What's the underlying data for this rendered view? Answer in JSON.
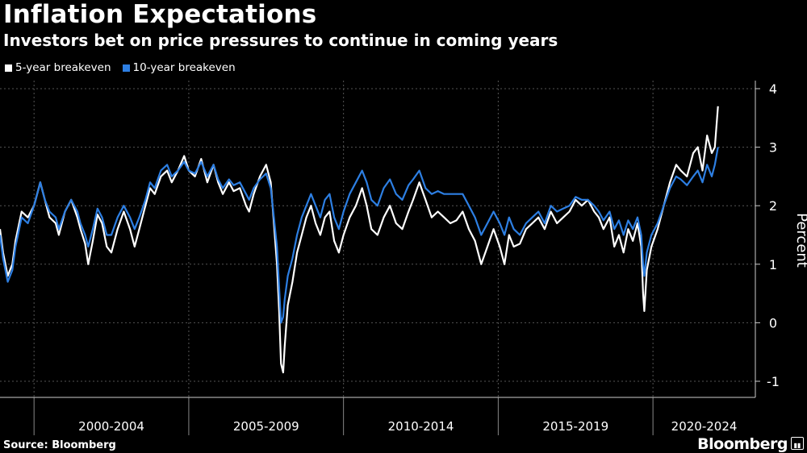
{
  "header": {
    "title": "Inflation Expectations",
    "subtitle": "Investors bet on price pressures to continue in coming years"
  },
  "footer": {
    "source": "Source: Bloomberg",
    "brand": "Bloomberg",
    "brand_mark_icon": "bloomberg-chart-icon"
  },
  "colors": {
    "background": "#000000",
    "series_5y": "#ffffff",
    "series_10y": "#2d7fe3",
    "grid": "#555555"
  },
  "chart_data": {
    "type": "line",
    "title": "Inflation Expectations",
    "subtitle": "Investors bet on price pressures to continue in coming years",
    "ylabel": "Percent",
    "xlabel": "",
    "ylim": [
      -1.3,
      4.2
    ],
    "yticks": [
      -1,
      0,
      1,
      2,
      3,
      4
    ],
    "ytick_labels": [
      "-1",
      "0",
      "1",
      "2",
      "3",
      "4"
    ],
    "xlim": [
      1998.0,
      2022.2
    ],
    "x_categories": [
      "2000-2004",
      "2005-2009",
      "2010-2014",
      "2015-2019",
      "2020-2024"
    ],
    "x_group_bounds": [
      1999,
      2004,
      2009,
      2014,
      2019,
      2024
    ],
    "grid": true,
    "legend_position": "top-left",
    "series": [
      {
        "name": "5-year breakeven",
        "color": "#ffffff",
        "points": [
          [
            1998.0,
            1.6
          ],
          [
            1998.1,
            1.2
          ],
          [
            1998.25,
            0.8
          ],
          [
            1998.4,
            1.0
          ],
          [
            1998.5,
            1.4
          ],
          [
            1998.7,
            1.9
          ],
          [
            1998.9,
            1.8
          ],
          [
            1999.1,
            2.0
          ],
          [
            1999.3,
            2.4
          ],
          [
            1999.45,
            2.1
          ],
          [
            1999.6,
            1.8
          ],
          [
            1999.8,
            1.7
          ],
          [
            1999.9,
            1.5
          ],
          [
            2000.1,
            1.9
          ],
          [
            2000.3,
            2.1
          ],
          [
            2000.5,
            1.8
          ],
          [
            2000.6,
            1.6
          ],
          [
            2000.75,
            1.35
          ],
          [
            2000.85,
            1.0
          ],
          [
            2001.0,
            1.4
          ],
          [
            2001.15,
            1.85
          ],
          [
            2001.3,
            1.7
          ],
          [
            2001.45,
            1.3
          ],
          [
            2001.6,
            1.2
          ],
          [
            2001.8,
            1.6
          ],
          [
            2002.0,
            1.9
          ],
          [
            2002.2,
            1.6
          ],
          [
            2002.35,
            1.3
          ],
          [
            2002.5,
            1.6
          ],
          [
            2002.7,
            2.0
          ],
          [
            2002.85,
            2.3
          ],
          [
            2003.0,
            2.2
          ],
          [
            2003.2,
            2.5
          ],
          [
            2003.4,
            2.6
          ],
          [
            2003.55,
            2.4
          ],
          [
            2003.75,
            2.6
          ],
          [
            2003.95,
            2.85
          ],
          [
            2004.1,
            2.6
          ],
          [
            2004.3,
            2.5
          ],
          [
            2004.5,
            2.8
          ],
          [
            2004.7,
            2.4
          ],
          [
            2004.9,
            2.7
          ],
          [
            2005.05,
            2.4
          ],
          [
            2005.2,
            2.2
          ],
          [
            2005.4,
            2.4
          ],
          [
            2005.55,
            2.25
          ],
          [
            2005.75,
            2.3
          ],
          [
            2005.95,
            2.0
          ],
          [
            2006.05,
            1.9
          ],
          [
            2006.2,
            2.2
          ],
          [
            2006.4,
            2.5
          ],
          [
            2006.6,
            2.7
          ],
          [
            2006.75,
            2.4
          ],
          [
            2006.85,
            1.7
          ],
          [
            2006.95,
            1.0
          ],
          [
            2007.02,
            0.2
          ],
          [
            2007.08,
            -0.7
          ],
          [
            2007.15,
            -0.85
          ],
          [
            2007.2,
            -0.4
          ],
          [
            2007.3,
            0.3
          ],
          [
            2007.45,
            0.7
          ],
          [
            2007.6,
            1.2
          ],
          [
            2007.75,
            1.5
          ],
          [
            2007.9,
            1.8
          ],
          [
            2008.05,
            2.0
          ],
          [
            2008.2,
            1.7
          ],
          [
            2008.35,
            1.5
          ],
          [
            2008.5,
            1.8
          ],
          [
            2008.65,
            1.9
          ],
          [
            2008.8,
            1.4
          ],
          [
            2008.95,
            1.2
          ],
          [
            2009.1,
            1.5
          ],
          [
            2009.3,
            1.8
          ],
          [
            2009.5,
            2.0
          ],
          [
            2009.7,
            2.3
          ],
          [
            2009.85,
            2.0
          ],
          [
            2010.0,
            1.6
          ],
          [
            2010.2,
            1.5
          ],
          [
            2010.4,
            1.8
          ],
          [
            2010.6,
            2.0
          ],
          [
            2010.8,
            1.7
          ],
          [
            2011.0,
            1.6
          ],
          [
            2011.2,
            1.9
          ],
          [
            2011.35,
            2.1
          ],
          [
            2011.55,
            2.4
          ],
          [
            2011.75,
            2.1
          ],
          [
            2011.95,
            1.8
          ],
          [
            2012.15,
            1.9
          ],
          [
            2012.35,
            1.8
          ],
          [
            2012.55,
            1.7
          ],
          [
            2012.75,
            1.75
          ],
          [
            2012.95,
            1.9
          ],
          [
            2013.15,
            1.6
          ],
          [
            2013.35,
            1.4
          ],
          [
            2013.55,
            1.0
          ],
          [
            2013.75,
            1.3
          ],
          [
            2013.95,
            1.6
          ],
          [
            2014.15,
            1.3
          ],
          [
            2014.3,
            1.0
          ],
          [
            2014.45,
            1.5
          ],
          [
            2014.6,
            1.3
          ],
          [
            2014.8,
            1.35
          ],
          [
            2015.0,
            1.6
          ],
          [
            2015.2,
            1.7
          ],
          [
            2015.4,
            1.8
          ],
          [
            2015.6,
            1.6
          ],
          [
            2015.8,
            1.9
          ],
          [
            2016.0,
            1.7
          ],
          [
            2016.2,
            1.8
          ],
          [
            2016.4,
            1.9
          ],
          [
            2016.6,
            2.1
          ],
          [
            2016.8,
            2.0
          ],
          [
            2017.0,
            2.1
          ],
          [
            2017.2,
            1.9
          ],
          [
            2017.35,
            1.8
          ],
          [
            2017.5,
            1.6
          ],
          [
            2017.7,
            1.8
          ],
          [
            2017.85,
            1.3
          ],
          [
            2018.0,
            1.5
          ],
          [
            2018.15,
            1.2
          ],
          [
            2018.3,
            1.6
          ],
          [
            2018.45,
            1.4
          ],
          [
            2018.6,
            1.7
          ],
          [
            2018.72,
            1.3
          ],
          [
            2018.78,
            0.5
          ],
          [
            2018.82,
            0.2
          ],
          [
            2018.9,
            0.9
          ],
          [
            2019.05,
            1.3
          ],
          [
            2019.25,
            1.6
          ],
          [
            2019.45,
            2.0
          ],
          [
            2019.65,
            2.4
          ],
          [
            2019.85,
            2.7
          ],
          [
            2020.0,
            2.6
          ],
          [
            2020.2,
            2.5
          ],
          [
            2020.4,
            2.9
          ],
          [
            2020.55,
            3.0
          ],
          [
            2020.7,
            2.6
          ],
          [
            2020.85,
            3.2
          ],
          [
            2021.0,
            2.9
          ],
          [
            2021.1,
            3.0
          ],
          [
            2021.2,
            3.7
          ]
        ]
      },
      {
        "name": "10-year breakeven",
        "color": "#2d7fe3",
        "points": [
          [
            1998.0,
            1.5
          ],
          [
            1998.1,
            1.1
          ],
          [
            1998.25,
            0.7
          ],
          [
            1998.4,
            0.9
          ],
          [
            1998.5,
            1.3
          ],
          [
            1998.7,
            1.8
          ],
          [
            1998.9,
            1.7
          ],
          [
            1999.1,
            2.0
          ],
          [
            1999.3,
            2.4
          ],
          [
            1999.45,
            2.1
          ],
          [
            1999.6,
            1.9
          ],
          [
            1999.8,
            1.8
          ],
          [
            1999.9,
            1.6
          ],
          [
            2000.1,
            1.9
          ],
          [
            2000.3,
            2.1
          ],
          [
            2000.5,
            1.9
          ],
          [
            2000.6,
            1.7
          ],
          [
            2000.75,
            1.5
          ],
          [
            2000.85,
            1.3
          ],
          [
            2001.0,
            1.6
          ],
          [
            2001.15,
            1.95
          ],
          [
            2001.3,
            1.8
          ],
          [
            2001.45,
            1.5
          ],
          [
            2001.6,
            1.5
          ],
          [
            2001.8,
            1.8
          ],
          [
            2002.0,
            2.0
          ],
          [
            2002.2,
            1.8
          ],
          [
            2002.35,
            1.6
          ],
          [
            2002.5,
            1.8
          ],
          [
            2002.7,
            2.1
          ],
          [
            2002.85,
            2.4
          ],
          [
            2003.0,
            2.3
          ],
          [
            2003.2,
            2.6
          ],
          [
            2003.4,
            2.7
          ],
          [
            2003.55,
            2.5
          ],
          [
            2003.75,
            2.6
          ],
          [
            2003.95,
            2.75
          ],
          [
            2004.1,
            2.6
          ],
          [
            2004.3,
            2.55
          ],
          [
            2004.5,
            2.75
          ],
          [
            2004.7,
            2.5
          ],
          [
            2004.9,
            2.7
          ],
          [
            2005.05,
            2.45
          ],
          [
            2005.2,
            2.3
          ],
          [
            2005.4,
            2.45
          ],
          [
            2005.55,
            2.35
          ],
          [
            2005.75,
            2.4
          ],
          [
            2005.95,
            2.2
          ],
          [
            2006.05,
            2.1
          ],
          [
            2006.2,
            2.3
          ],
          [
            2006.4,
            2.45
          ],
          [
            2006.6,
            2.55
          ],
          [
            2006.75,
            2.3
          ],
          [
            2006.85,
            1.8
          ],
          [
            2006.95,
            1.3
          ],
          [
            2007.02,
            0.6
          ],
          [
            2007.08,
            0.0
          ],
          [
            2007.15,
            0.1
          ],
          [
            2007.2,
            0.4
          ],
          [
            2007.3,
            0.8
          ],
          [
            2007.45,
            1.1
          ],
          [
            2007.6,
            1.5
          ],
          [
            2007.75,
            1.8
          ],
          [
            2007.9,
            2.0
          ],
          [
            2008.05,
            2.2
          ],
          [
            2008.2,
            2.0
          ],
          [
            2008.35,
            1.8
          ],
          [
            2008.5,
            2.1
          ],
          [
            2008.65,
            2.2
          ],
          [
            2008.8,
            1.8
          ],
          [
            2008.95,
            1.6
          ],
          [
            2009.1,
            1.9
          ],
          [
            2009.3,
            2.2
          ],
          [
            2009.5,
            2.4
          ],
          [
            2009.7,
            2.6
          ],
          [
            2009.85,
            2.4
          ],
          [
            2010.0,
            2.1
          ],
          [
            2010.2,
            2.0
          ],
          [
            2010.4,
            2.3
          ],
          [
            2010.6,
            2.45
          ],
          [
            2010.8,
            2.2
          ],
          [
            2011.0,
            2.1
          ],
          [
            2011.2,
            2.35
          ],
          [
            2011.35,
            2.45
          ],
          [
            2011.55,
            2.6
          ],
          [
            2011.75,
            2.3
          ],
          [
            2011.95,
            2.2
          ],
          [
            2012.15,
            2.25
          ],
          [
            2012.35,
            2.2
          ],
          [
            2012.55,
            2.2
          ],
          [
            2012.75,
            2.2
          ],
          [
            2012.95,
            2.2
          ],
          [
            2013.15,
            2.0
          ],
          [
            2013.35,
            1.8
          ],
          [
            2013.55,
            1.5
          ],
          [
            2013.75,
            1.7
          ],
          [
            2013.95,
            1.9
          ],
          [
            2014.15,
            1.7
          ],
          [
            2014.3,
            1.5
          ],
          [
            2014.45,
            1.8
          ],
          [
            2014.6,
            1.6
          ],
          [
            2014.8,
            1.5
          ],
          [
            2015.0,
            1.7
          ],
          [
            2015.2,
            1.8
          ],
          [
            2015.4,
            1.9
          ],
          [
            2015.6,
            1.7
          ],
          [
            2015.8,
            2.0
          ],
          [
            2016.0,
            1.9
          ],
          [
            2016.2,
            1.95
          ],
          [
            2016.4,
            2.0
          ],
          [
            2016.6,
            2.15
          ],
          [
            2016.8,
            2.1
          ],
          [
            2017.0,
            2.1
          ],
          [
            2017.2,
            2.0
          ],
          [
            2017.35,
            1.9
          ],
          [
            2017.5,
            1.75
          ],
          [
            2017.7,
            1.9
          ],
          [
            2017.85,
            1.6
          ],
          [
            2018.0,
            1.75
          ],
          [
            2018.15,
            1.5
          ],
          [
            2018.3,
            1.75
          ],
          [
            2018.45,
            1.6
          ],
          [
            2018.6,
            1.8
          ],
          [
            2018.72,
            1.5
          ],
          [
            2018.78,
            1.0
          ],
          [
            2018.82,
            0.8
          ],
          [
            2018.9,
            1.2
          ],
          [
            2019.05,
            1.5
          ],
          [
            2019.25,
            1.7
          ],
          [
            2019.45,
            2.0
          ],
          [
            2019.65,
            2.3
          ],
          [
            2019.85,
            2.5
          ],
          [
            2020.0,
            2.45
          ],
          [
            2020.2,
            2.35
          ],
          [
            2020.4,
            2.5
          ],
          [
            2020.55,
            2.6
          ],
          [
            2020.7,
            2.4
          ],
          [
            2020.85,
            2.7
          ],
          [
            2021.0,
            2.5
          ],
          [
            2021.1,
            2.7
          ],
          [
            2021.2,
            3.0
          ]
        ]
      }
    ]
  }
}
